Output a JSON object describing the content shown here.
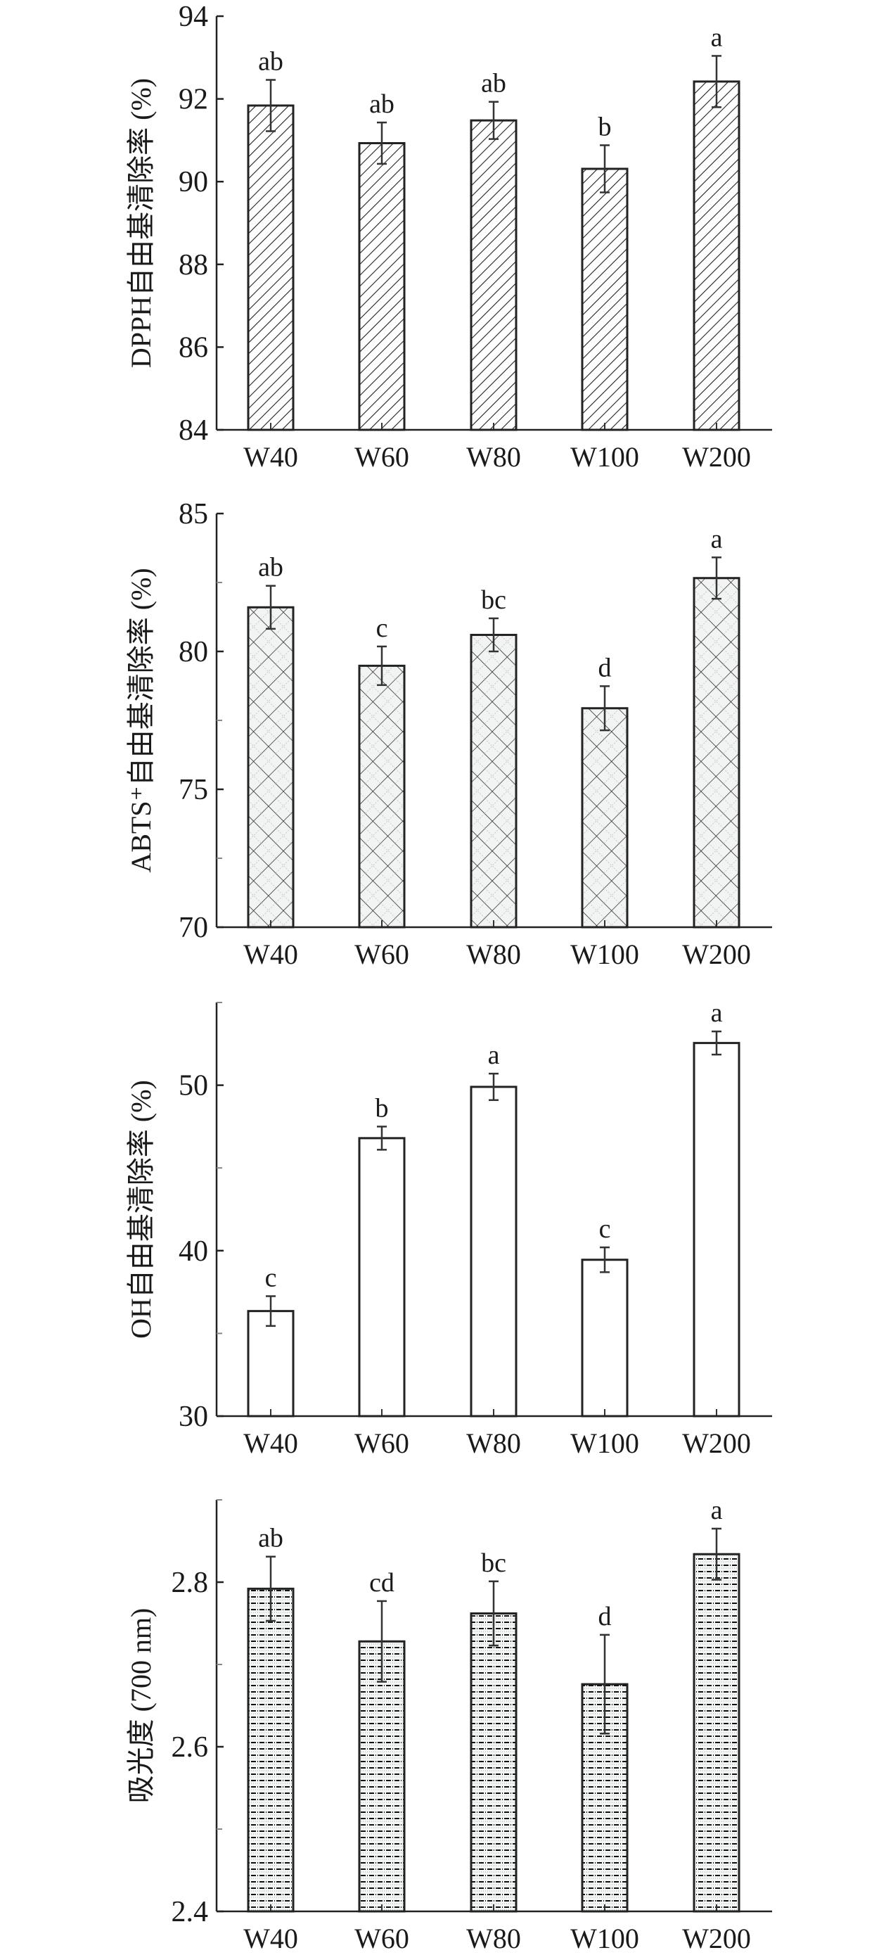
{
  "chart_data": [
    {
      "type": "bar",
      "pattern": "diagonal-hatch",
      "ylabel": "DPPH自由基清除率 (%)",
      "categories": [
        "W40",
        "W60",
        "W80",
        "W100",
        "W200"
      ],
      "values": [
        91.84,
        90.93,
        91.48,
        90.31,
        92.42
      ],
      "errors": [
        0.62,
        0.5,
        0.45,
        0.57,
        0.62
      ],
      "letters": [
        "ab",
        "ab",
        "ab",
        "b",
        "a"
      ],
      "ylim": [
        84,
        94
      ],
      "yticks": [
        84,
        86,
        88,
        90,
        92,
        94
      ],
      "ytick_labels": [
        "84",
        "86",
        "88",
        "90",
        "92",
        "94"
      ],
      "minor_ticks": []
    },
    {
      "type": "bar",
      "pattern": "crosshatch",
      "ylabel": "ABTS⁺自由基清除率 (%)",
      "categories": [
        "W40",
        "W60",
        "W80",
        "W100",
        "W200"
      ],
      "values": [
        81.6,
        79.48,
        80.6,
        77.94,
        82.66
      ],
      "errors": [
        0.78,
        0.7,
        0.6,
        0.8,
        0.75
      ],
      "letters": [
        "ab",
        "c",
        "bc",
        "d",
        "a"
      ],
      "ylim": [
        70,
        85
      ],
      "yticks": [
        70,
        75,
        80,
        85
      ],
      "ytick_labels": [
        "70",
        "75",
        "80",
        "85"
      ],
      "minor_ticks": [
        72.5,
        77.5,
        82.5
      ]
    },
    {
      "type": "bar",
      "pattern": "none",
      "ylabel": "OH自由基清除率 (%)",
      "categories": [
        "W40",
        "W60",
        "W80",
        "W100",
        "W200"
      ],
      "values": [
        36.35,
        46.8,
        49.9,
        39.45,
        52.55
      ],
      "errors": [
        0.9,
        0.7,
        0.8,
        0.75,
        0.7
      ],
      "letters": [
        "c",
        "b",
        "a",
        "c",
        "a"
      ],
      "ylim": [
        30,
        55
      ],
      "yticks": [
        30,
        40,
        50
      ],
      "ytick_labels": [
        "30",
        "40",
        "50"
      ],
      "minor_ticks": [
        35,
        45,
        55
      ]
    },
    {
      "type": "bar",
      "pattern": "dotted",
      "ylabel": "吸光度 (700 nm)",
      "categories": [
        "W40",
        "W60",
        "W80",
        "W100",
        "W200"
      ],
      "values": [
        2.792,
        2.728,
        2.762,
        2.676,
        2.834
      ],
      "errors": [
        0.039,
        0.049,
        0.039,
        0.06,
        0.031
      ],
      "letters": [
        "ab",
        "cd",
        "bc",
        "d",
        "a"
      ],
      "ylim": [
        2.4,
        2.9
      ],
      "yticks": [
        2.4,
        2.6,
        2.8
      ],
      "ytick_labels": [
        "2.4",
        "2.6",
        "2.8"
      ],
      "minor_ticks": [
        2.5,
        2.7,
        2.9
      ]
    }
  ]
}
